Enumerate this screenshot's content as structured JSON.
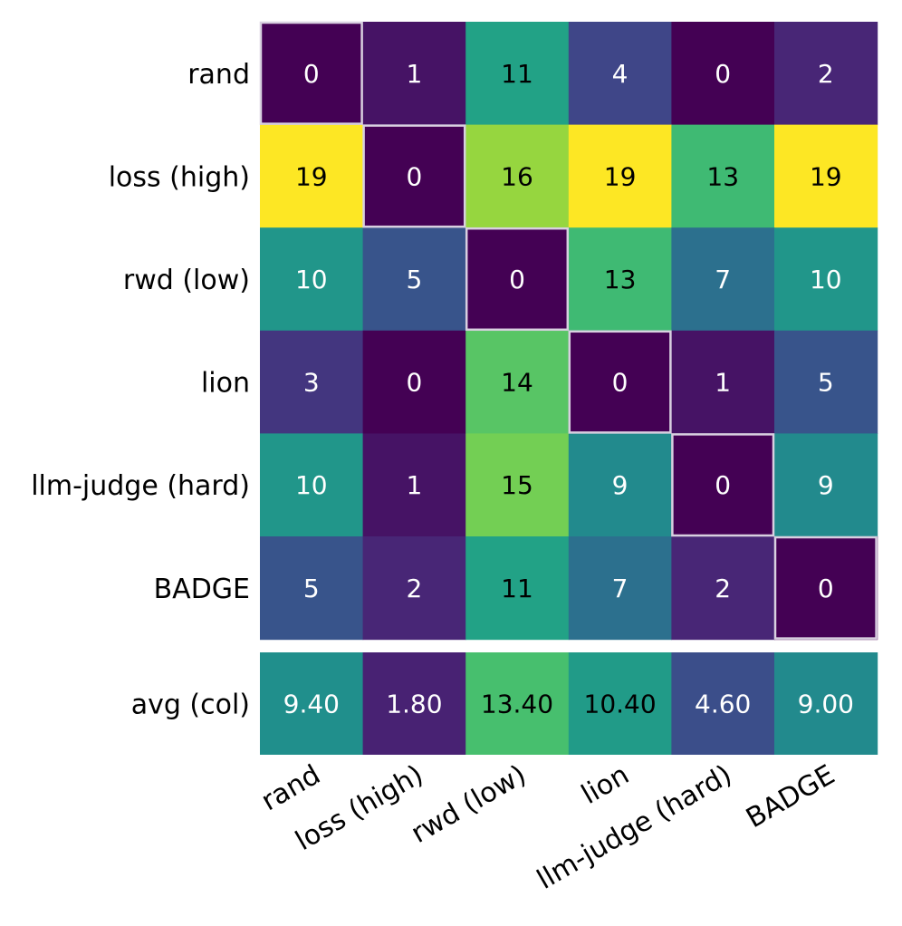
{
  "chart_data": {
    "type": "heatmap",
    "rows": [
      "rand",
      "loss (high)",
      "rwd (low)",
      "lion",
      "llm-judge (hard)",
      "BADGE"
    ],
    "cols": [
      "rand",
      "loss (high)",
      "rwd (low)",
      "lion",
      "llm-judge (hard)",
      "BADGE"
    ],
    "values": [
      [
        0,
        1,
        11,
        4,
        0,
        2
      ],
      [
        19,
        0,
        16,
        19,
        13,
        19
      ],
      [
        10,
        5,
        0,
        13,
        7,
        10
      ],
      [
        3,
        0,
        14,
        0,
        1,
        5
      ],
      [
        10,
        1,
        15,
        9,
        0,
        9
      ],
      [
        5,
        2,
        11,
        7,
        2,
        0
      ]
    ],
    "value_labels": [
      [
        "0",
        "1",
        "11",
        "4",
        "0",
        "2"
      ],
      [
        "19",
        "0",
        "16",
        "19",
        "13",
        "19"
      ],
      [
        "10",
        "5",
        "0",
        "13",
        "7",
        "10"
      ],
      [
        "3",
        "0",
        "14",
        "0",
        "1",
        "5"
      ],
      [
        "10",
        "1",
        "15",
        "9",
        "0",
        "9"
      ],
      [
        "5",
        "2",
        "11",
        "7",
        "2",
        "0"
      ]
    ],
    "vmin": 0,
    "vmax": 19,
    "colormap": "viridis",
    "diagonal_highlight": true,
    "summary_row": {
      "label": "avg (col)",
      "values": [
        9.4,
        1.8,
        13.4,
        10.4,
        4.6,
        9.0
      ],
      "value_labels": [
        "9.40",
        "1.80",
        "13.40",
        "10.40",
        "4.60",
        "9.00"
      ]
    },
    "colors": {
      "highlight_border": "#d8d0e0",
      "text_dark": "#000000",
      "text_light": "#ffffff"
    }
  }
}
